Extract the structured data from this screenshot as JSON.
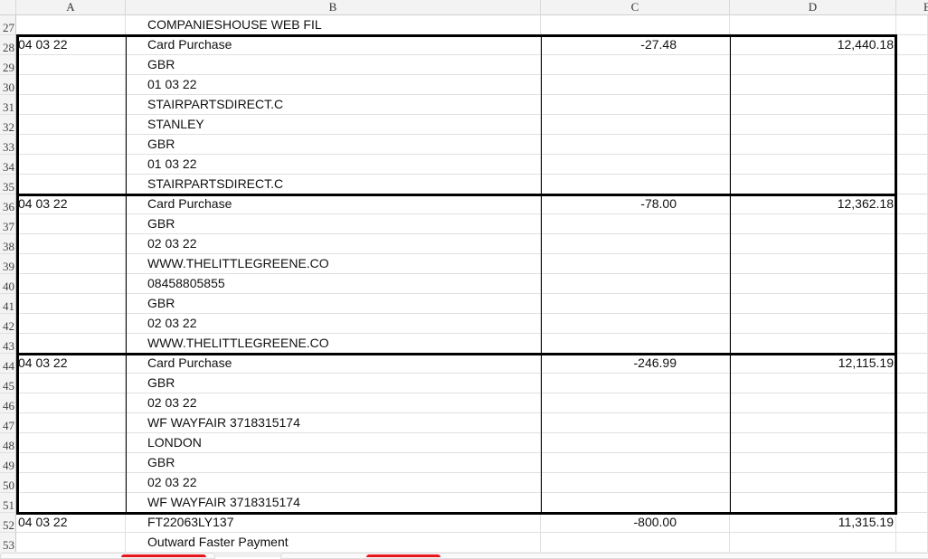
{
  "columns": [
    "A",
    "B",
    "C",
    "D",
    "E"
  ],
  "rows": [
    {
      "n": "27",
      "a": "",
      "b": "COMPANIESHOUSE WEB FIL",
      "c": "",
      "d": ""
    },
    {
      "n": "28",
      "a": "04 03 22",
      "b": "Card Purchase",
      "c": "-27.48",
      "d": "12,440.18"
    },
    {
      "n": "29",
      "a": "",
      "b": "GBR",
      "c": "",
      "d": ""
    },
    {
      "n": "30",
      "a": "",
      "b": "01 03 22",
      "c": "",
      "d": ""
    },
    {
      "n": "31",
      "a": "",
      "b": "STAIRPARTSDIRECT.C",
      "c": "",
      "d": ""
    },
    {
      "n": "32",
      "a": "",
      "b": "STANLEY",
      "c": "",
      "d": ""
    },
    {
      "n": "33",
      "a": "",
      "b": "GBR",
      "c": "",
      "d": ""
    },
    {
      "n": "34",
      "a": "",
      "b": "01 03 22",
      "c": "",
      "d": ""
    },
    {
      "n": "35",
      "a": "",
      "b": "STAIRPARTSDIRECT.C",
      "c": "",
      "d": ""
    },
    {
      "n": "36",
      "a": "04 03 22",
      "b": "Card Purchase",
      "c": "-78.00",
      "d": "12,362.18"
    },
    {
      "n": "37",
      "a": "",
      "b": "GBR",
      "c": "",
      "d": ""
    },
    {
      "n": "38",
      "a": "",
      "b": "02 03 22",
      "c": "",
      "d": ""
    },
    {
      "n": "39",
      "a": "",
      "b": "WWW.THELITTLEGREENE.CO",
      "c": "",
      "d": ""
    },
    {
      "n": "40",
      "a": "",
      "b": "08458805855",
      "c": "",
      "d": ""
    },
    {
      "n": "41",
      "a": "",
      "b": "GBR",
      "c": "",
      "d": ""
    },
    {
      "n": "42",
      "a": "",
      "b": "02 03 22",
      "c": "",
      "d": ""
    },
    {
      "n": "43",
      "a": "",
      "b": "WWW.THELITTLEGREENE.CO",
      "c": "",
      "d": ""
    },
    {
      "n": "44",
      "a": "04 03 22",
      "b": "Card Purchase",
      "c": "-246.99",
      "d": "12,115.19"
    },
    {
      "n": "45",
      "a": "",
      "b": "GBR",
      "c": "",
      "d": ""
    },
    {
      "n": "46",
      "a": "",
      "b": "02 03 22",
      "c": "",
      "d": ""
    },
    {
      "n": "47",
      "a": "",
      "b": "WF WAYFAIR 3718315174",
      "c": "",
      "d": ""
    },
    {
      "n": "48",
      "a": "",
      "b": "LONDON",
      "c": "",
      "d": ""
    },
    {
      "n": "49",
      "a": "",
      "b": "GBR",
      "c": "",
      "d": ""
    },
    {
      "n": "50",
      "a": "",
      "b": "02 03 22",
      "c": "",
      "d": ""
    },
    {
      "n": "51",
      "a": "",
      "b": "WF WAYFAIR 3718315174",
      "c": "",
      "d": ""
    },
    {
      "n": "52",
      "a": "04 03 22",
      "b": "FT22063LY137",
      "c": "-800.00",
      "d": "11,315.19"
    },
    {
      "n": "53",
      "a": "",
      "b": "Outward Faster Payment",
      "c": "",
      "d": ""
    }
  ],
  "accent_color": "#e8141c"
}
